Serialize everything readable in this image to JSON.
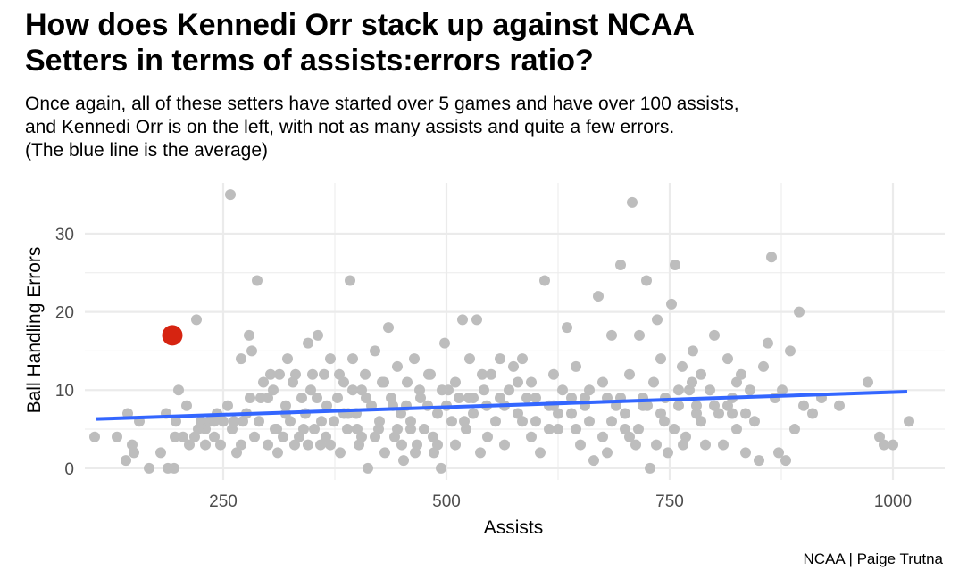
{
  "title_lines": [
    "How does Kennedi Orr stack up against NCAA",
    "Setters in terms of assists:errors ratio?"
  ],
  "subtitle_lines": [
    "Once again, all of these setters have started over 5 games and have over 100 assists,",
    "and Kennedi Orr is on the left, with not as many assists and quite a few errors.",
    "(The blue line is the average)"
  ],
  "caption": "NCAA | Paige Trutna",
  "colors": {
    "points": "#bdbdbd",
    "highlight": "#d62411",
    "trend": "#3366ff",
    "grid": "#ebebeb"
  },
  "chart_data": {
    "type": "scatter",
    "xlabel": "Assists",
    "ylabel": "Ball Handling Errors",
    "xlim": [
      95,
      1058
    ],
    "ylim": [
      -1.5,
      36.5
    ],
    "x_ticks": [
      250,
      500,
      750,
      1000
    ],
    "x_tick_labels": [
      "250",
      "500",
      "750",
      "1000"
    ],
    "y_ticks": [
      0,
      10,
      20,
      30
    ],
    "y_tick_labels": [
      "0",
      "10",
      "20",
      "30"
    ],
    "grid": true,
    "legend": "none",
    "highlight": {
      "name": "Kennedi Orr",
      "x": 193,
      "y": 17
    },
    "trend_line": {
      "x": [
        108,
        1016
      ],
      "y": [
        6.3,
        9.8
      ]
    },
    "points": [
      [
        106,
        4
      ],
      [
        131,
        4
      ],
      [
        141,
        1
      ],
      [
        143,
        7
      ],
      [
        148,
        3
      ],
      [
        150,
        2
      ],
      [
        156,
        6
      ],
      [
        167,
        0
      ],
      [
        180,
        2
      ],
      [
        186,
        7
      ],
      [
        188,
        0
      ],
      [
        195,
        0
      ],
      [
        196,
        4
      ],
      [
        197,
        6
      ],
      [
        200,
        10
      ],
      [
        205,
        4
      ],
      [
        209,
        8
      ],
      [
        212,
        3
      ],
      [
        218,
        4
      ],
      [
        220,
        19
      ],
      [
        225,
        6
      ],
      [
        230,
        5
      ],
      [
        235,
        6
      ],
      [
        240,
        4
      ],
      [
        243,
        7
      ],
      [
        247,
        3
      ],
      [
        250,
        6
      ],
      [
        255,
        8
      ],
      [
        258,
        35
      ],
      [
        262,
        6
      ],
      [
        265,
        2
      ],
      [
        270,
        14
      ],
      [
        272,
        6
      ],
      [
        276,
        7
      ],
      [
        279,
        17
      ],
      [
        282,
        15
      ],
      [
        285,
        4
      ],
      [
        288,
        24
      ],
      [
        290,
        6
      ],
      [
        292,
        9
      ],
      [
        295,
        11
      ],
      [
        300,
        3
      ],
      [
        303,
        12
      ],
      [
        306,
        10
      ],
      [
        308,
        5
      ],
      [
        311,
        2
      ],
      [
        313,
        12
      ],
      [
        317,
        4
      ],
      [
        320,
        8
      ],
      [
        322,
        14
      ],
      [
        325,
        6
      ],
      [
        328,
        11
      ],
      [
        331,
        12
      ],
      [
        335,
        4
      ],
      [
        338,
        9
      ],
      [
        342,
        7
      ],
      [
        345,
        16
      ],
      [
        348,
        10
      ],
      [
        352,
        5
      ],
      [
        356,
        17
      ],
      [
        359,
        3
      ],
      [
        363,
        12
      ],
      [
        366,
        8
      ],
      [
        370,
        14
      ],
      [
        374,
        6
      ],
      [
        378,
        9
      ],
      [
        381,
        2
      ],
      [
        385,
        11
      ],
      [
        389,
        5
      ],
      [
        392,
        24
      ],
      [
        395,
        14
      ],
      [
        399,
        7
      ],
      [
        402,
        3
      ],
      [
        405,
        10
      ],
      [
        409,
        12
      ],
      [
        412,
        0
      ],
      [
        416,
        8
      ],
      [
        420,
        15
      ],
      [
        424,
        5
      ],
      [
        428,
        11
      ],
      [
        431,
        2
      ],
      [
        435,
        18
      ],
      [
        438,
        9
      ],
      [
        442,
        4
      ],
      [
        445,
        13
      ],
      [
        449,
        7
      ],
      [
        452,
        1
      ],
      [
        456,
        11
      ],
      [
        460,
        6
      ],
      [
        464,
        14
      ],
      [
        467,
        3
      ],
      [
        471,
        9
      ],
      [
        475,
        5
      ],
      [
        479,
        8
      ],
      [
        482,
        12
      ],
      [
        486,
        2
      ],
      [
        490,
        7
      ],
      [
        494,
        0
      ],
      [
        498,
        16
      ],
      [
        502,
        10
      ],
      [
        506,
        6
      ],
      [
        510,
        3
      ],
      [
        514,
        9
      ],
      [
        518,
        19
      ],
      [
        522,
        5
      ],
      [
        526,
        14
      ],
      [
        530,
        7
      ],
      [
        534,
        19
      ],
      [
        538,
        2
      ],
      [
        542,
        10
      ],
      [
        546,
        4
      ],
      [
        550,
        12
      ],
      [
        555,
        6
      ],
      [
        560,
        14
      ],
      [
        565,
        3
      ],
      [
        570,
        10
      ],
      [
        575,
        13
      ],
      [
        580,
        7
      ],
      [
        585,
        14
      ],
      [
        590,
        9
      ],
      [
        595,
        4
      ],
      [
        600,
        6
      ],
      [
        605,
        2
      ],
      [
        610,
        24
      ],
      [
        615,
        8
      ],
      [
        620,
        12
      ],
      [
        625,
        5
      ],
      [
        630,
        10
      ],
      [
        635,
        18
      ],
      [
        640,
        7
      ],
      [
        645,
        13
      ],
      [
        650,
        3
      ],
      [
        655,
        9
      ],
      [
        660,
        6
      ],
      [
        665,
        1
      ],
      [
        670,
        22
      ],
      [
        675,
        11
      ],
      [
        680,
        2
      ],
      [
        685,
        17
      ],
      [
        690,
        8
      ],
      [
        695,
        26
      ],
      [
        700,
        5
      ],
      [
        705,
        12
      ],
      [
        708,
        34
      ],
      [
        712,
        3
      ],
      [
        716,
        17
      ],
      [
        720,
        9
      ],
      [
        724,
        24
      ],
      [
        728,
        0
      ],
      [
        732,
        11
      ],
      [
        736,
        19
      ],
      [
        740,
        14
      ],
      [
        744,
        6
      ],
      [
        748,
        2
      ],
      [
        752,
        21
      ],
      [
        756,
        26
      ],
      [
        760,
        8
      ],
      [
        764,
        13
      ],
      [
        768,
        4
      ],
      [
        772,
        10
      ],
      [
        776,
        15
      ],
      [
        780,
        7
      ],
      [
        785,
        12
      ],
      [
        790,
        3
      ],
      [
        795,
        10
      ],
      [
        800,
        17
      ],
      [
        805,
        7
      ],
      [
        810,
        3
      ],
      [
        815,
        14
      ],
      [
        820,
        9
      ],
      [
        825,
        5
      ],
      [
        830,
        12
      ],
      [
        835,
        2
      ],
      [
        840,
        10
      ],
      [
        845,
        6
      ],
      [
        850,
        1
      ],
      [
        855,
        13
      ],
      [
        860,
        16
      ],
      [
        864,
        27
      ],
      [
        868,
        9
      ],
      [
        872,
        2
      ],
      [
        876,
        10
      ],
      [
        880,
        1
      ],
      [
        885,
        15
      ],
      [
        890,
        5
      ],
      [
        895,
        20
      ],
      [
        900,
        8
      ],
      [
        910,
        7
      ],
      [
        920,
        9
      ],
      [
        940,
        8
      ],
      [
        972,
        11
      ],
      [
        985,
        4
      ],
      [
        990,
        3
      ],
      [
        1000,
        3
      ],
      [
        1018,
        6
      ],
      [
        330,
        3
      ],
      [
        340,
        5
      ],
      [
        350,
        12
      ],
      [
        360,
        6
      ],
      [
        370,
        3
      ],
      [
        380,
        12
      ],
      [
        390,
        7
      ],
      [
        400,
        5
      ],
      [
        410,
        9
      ],
      [
        420,
        4
      ],
      [
        430,
        11
      ],
      [
        440,
        8
      ],
      [
        450,
        3
      ],
      [
        460,
        5
      ],
      [
        470,
        10
      ],
      [
        480,
        12
      ],
      [
        490,
        3
      ],
      [
        500,
        8
      ],
      [
        510,
        11
      ],
      [
        520,
        6
      ],
      [
        530,
        9
      ],
      [
        540,
        12
      ],
      [
        560,
        9
      ],
      [
        580,
        11
      ],
      [
        600,
        9
      ],
      [
        620,
        8
      ],
      [
        640,
        9
      ],
      [
        660,
        10
      ],
      [
        680,
        9
      ],
      [
        700,
        7
      ],
      [
        720,
        8
      ],
      [
        740,
        7
      ],
      [
        760,
        10
      ],
      [
        780,
        8
      ],
      [
        800,
        8
      ],
      [
        820,
        7
      ],
      [
        310,
        5
      ],
      [
        320,
        7
      ],
      [
        345,
        3
      ],
      [
        355,
        9
      ],
      [
        365,
        4
      ],
      [
        385,
        7
      ],
      [
        395,
        10
      ],
      [
        405,
        4
      ],
      [
        425,
        6
      ],
      [
        445,
        5
      ],
      [
        455,
        8
      ],
      [
        465,
        2
      ],
      [
        485,
        4
      ],
      [
        495,
        10
      ],
      [
        525,
        9
      ],
      [
        545,
        8
      ],
      [
        565,
        8
      ],
      [
        585,
        6
      ],
      [
        595,
        11
      ],
      [
        615,
        5
      ],
      [
        625,
        7
      ],
      [
        645,
        5
      ],
      [
        655,
        8
      ],
      [
        675,
        4
      ],
      [
        685,
        6
      ],
      [
        695,
        9
      ],
      [
        705,
        4
      ],
      [
        715,
        5
      ],
      [
        725,
        8
      ],
      [
        735,
        3
      ],
      [
        745,
        9
      ],
      [
        755,
        5
      ],
      [
        765,
        3
      ],
      [
        775,
        11
      ],
      [
        785,
        6
      ],
      [
        815,
        8
      ],
      [
        825,
        11
      ],
      [
        835,
        7
      ],
      [
        300,
        9
      ],
      [
        260,
        5
      ],
      [
        270,
        3
      ],
      [
        280,
        9
      ],
      [
        240,
        6
      ],
      [
        230,
        3
      ],
      [
        222,
        5
      ]
    ]
  }
}
